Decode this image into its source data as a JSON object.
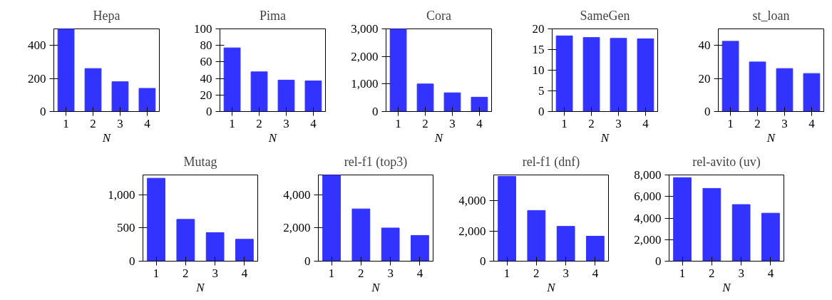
{
  "chart_data": [
    {
      "type": "bar",
      "title": "Hepa",
      "xlabel": "N",
      "x": [
        1,
        2,
        3,
        4
      ],
      "values": [
        500,
        260,
        180,
        140
      ],
      "color": "#3333ff",
      "xlim": [
        0.55,
        4.45
      ],
      "xticks": [
        1,
        2,
        3,
        4
      ],
      "ylim": [
        0,
        500
      ],
      "yticks": [
        0,
        200,
        400
      ]
    },
    {
      "type": "bar",
      "title": "Pima",
      "xlabel": "N",
      "x": [
        1,
        2,
        3,
        4
      ],
      "values": [
        77,
        48,
        38,
        37
      ],
      "color": "#3333ff",
      "xlim": [
        0.55,
        4.45
      ],
      "xticks": [
        1,
        2,
        3,
        4
      ],
      "ylim": [
        0,
        100
      ],
      "yticks": [
        0,
        20,
        40,
        60,
        80,
        100
      ]
    },
    {
      "type": "bar",
      "title": "Cora",
      "xlabel": "N",
      "x": [
        1,
        2,
        3,
        4
      ],
      "values": [
        3000,
        1000,
        680,
        520
      ],
      "color": "#3333ff",
      "xlim": [
        0.55,
        4.45
      ],
      "xticks": [
        1,
        2,
        3,
        4
      ],
      "ylim": [
        0,
        3000
      ],
      "yticks": [
        0,
        {
          "value": 1000,
          "label": "1,000"
        },
        {
          "value": 2000,
          "label": "2,000"
        },
        {
          "value": 3000,
          "label": "3,000"
        }
      ]
    },
    {
      "type": "bar",
      "title": "SameGen",
      "xlabel": "N",
      "x": [
        1,
        2,
        3,
        4
      ],
      "values": [
        18.3,
        17.9,
        17.7,
        17.6
      ],
      "color": "#3333ff",
      "xlim": [
        0.55,
        4.45
      ],
      "xticks": [
        1,
        2,
        3,
        4
      ],
      "ylim": [
        0,
        20
      ],
      "yticks": [
        0,
        5,
        10,
        15,
        20
      ]
    },
    {
      "type": "bar",
      "title": "st_loan",
      "xlabel": "N",
      "x": [
        1,
        2,
        3,
        4
      ],
      "values": [
        42.5,
        30,
        26,
        23
      ],
      "color": "#3333ff",
      "xlim": [
        0.55,
        4.45
      ],
      "xticks": [
        1,
        2,
        3,
        4
      ],
      "ylim": [
        0,
        50
      ],
      "yticks": [
        0,
        20,
        40
      ]
    },
    {
      "type": "bar",
      "title": "Mutag",
      "xlabel": "N",
      "x": [
        1,
        2,
        3,
        4
      ],
      "values": [
        1250,
        630,
        430,
        330
      ],
      "color": "#3333ff",
      "xlim": [
        0.55,
        4.45
      ],
      "xticks": [
        1,
        2,
        3,
        4
      ],
      "ylim": [
        0,
        1300
      ],
      "yticks": [
        0,
        500,
        {
          "value": 1000,
          "label": "1,000"
        }
      ]
    },
    {
      "type": "bar",
      "title": "rel-f1 (top3)",
      "xlabel": "N",
      "x": [
        1,
        2,
        3,
        4
      ],
      "values": [
        5200,
        3150,
        2000,
        1550
      ],
      "color": "#3333ff",
      "xlim": [
        0.55,
        4.45
      ],
      "xticks": [
        1,
        2,
        3,
        4
      ],
      "ylim": [
        0,
        5200
      ],
      "yticks": [
        0,
        {
          "value": 2000,
          "label": "2,000"
        },
        {
          "value": 4000,
          "label": "4,000"
        }
      ]
    },
    {
      "type": "bar",
      "title": "rel-f1 (dnf)",
      "xlabel": "N",
      "x": [
        1,
        2,
        3,
        4
      ],
      "values": [
        5600,
        3350,
        2300,
        1650
      ],
      "color": "#3333ff",
      "xlim": [
        0.55,
        4.45
      ],
      "xticks": [
        1,
        2,
        3,
        4
      ],
      "ylim": [
        0,
        5700
      ],
      "yticks": [
        0,
        {
          "value": 2000,
          "label": "2,000"
        },
        {
          "value": 4000,
          "label": "4,000"
        }
      ]
    },
    {
      "type": "bar",
      "title": "rel-avito (uv)",
      "xlabel": "N",
      "x": [
        1,
        2,
        3,
        4
      ],
      "values": [
        7750,
        6750,
        5250,
        4450
      ],
      "color": "#3333ff",
      "xlim": [
        0.55,
        4.45
      ],
      "xticks": [
        1,
        2,
        3,
        4
      ],
      "ylim": [
        0,
        8000
      ],
      "yticks": [
        0,
        {
          "value": 2000,
          "label": "2,000"
        },
        {
          "value": 4000,
          "label": "4,000"
        },
        {
          "value": 6000,
          "label": "6,000"
        },
        {
          "value": 8000,
          "label": "8,000"
        }
      ]
    }
  ]
}
